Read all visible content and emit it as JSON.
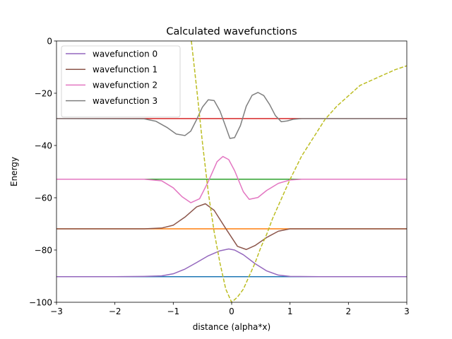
{
  "chart_data": {
    "type": "line",
    "title": "Calculated wavefunctions",
    "xlabel": "distance (alpha*x)",
    "ylabel": "Energy",
    "xlim": [
      -3,
      3
    ],
    "ylim": [
      -100,
      0
    ],
    "xticks": [
      -3,
      -2,
      -1,
      0,
      1,
      2,
      3
    ],
    "yticks": [
      -100,
      -80,
      -60,
      -40,
      -20,
      0
    ],
    "xtick_labels": [
      "−3",
      "−2",
      "−1",
      "0",
      "1",
      "2",
      "3"
    ],
    "ytick_labels": [
      "−100",
      "−80",
      "−60",
      "−40",
      "−20",
      "0"
    ],
    "grid": false,
    "legend_position": "upper-left",
    "potential": {
      "style": "dashed",
      "color": "#bcbd22",
      "x": [
        -0.69,
        -0.6,
        -0.5,
        -0.4,
        -0.3,
        -0.2,
        -0.1,
        0.0,
        0.1,
        0.2,
        0.3,
        0.4,
        0.5,
        0.6,
        0.7,
        0.8,
        0.9,
        1.0,
        1.2,
        1.4,
        1.6,
        1.8,
        2.0,
        2.2,
        2.4,
        2.6,
        2.8,
        3.0
      ],
      "y": [
        0,
        -18,
        -39,
        -58,
        -73,
        -85,
        -95,
        -100,
        -98,
        -95,
        -90,
        -85,
        -79,
        -74,
        -68,
        -63,
        -58,
        -53,
        -44,
        -37,
        -30,
        -25,
        -21,
        -17,
        -15,
        -13,
        -11,
        -9.5
      ]
    },
    "energy_levels": [
      {
        "energy": -90.2,
        "x_start": -1.0,
        "x_end": 1.0,
        "color": "#1f77b4"
      },
      {
        "energy": -71.9,
        "x_start": -1.2,
        "x_end": 1.2,
        "color": "#ff7f0e"
      },
      {
        "energy": -52.9,
        "x_start": -1.3,
        "x_end": 1.3,
        "color": "#2ca02c"
      },
      {
        "energy": -29.7,
        "x_start": -1.4,
        "x_end": 1.4,
        "color": "#d62728"
      }
    ],
    "series": [
      {
        "name": "wavefunction 0",
        "color": "#9467bd",
        "x": [
          -3.0,
          -2.0,
          -1.5,
          -1.2,
          -1.0,
          -0.8,
          -0.6,
          -0.4,
          -0.2,
          -0.05,
          0.05,
          0.2,
          0.4,
          0.6,
          0.8,
          1.0,
          1.5,
          2.0,
          3.0
        ],
        "y": [
          -90.2,
          -90.2,
          -90.1,
          -89.9,
          -89.1,
          -87.3,
          -84.8,
          -82.2,
          -80.3,
          -79.6,
          -80.0,
          -81.8,
          -85.2,
          -88.0,
          -89.6,
          -90.1,
          -90.2,
          -90.2,
          -90.2
        ]
      },
      {
        "name": "wavefunction 1",
        "color": "#8c564b",
        "x": [
          -3.0,
          -1.5,
          -1.2,
          -1.0,
          -0.8,
          -0.6,
          -0.45,
          -0.3,
          -0.1,
          0.1,
          0.25,
          0.4,
          0.6,
          0.8,
          1.0,
          1.5,
          3.0
        ],
        "y": [
          -71.9,
          -71.9,
          -71.6,
          -70.5,
          -67.4,
          -63.5,
          -62.3,
          -64.8,
          -71.8,
          -78.6,
          -79.8,
          -78.3,
          -75.2,
          -72.8,
          -71.9,
          -71.9,
          -71.9
        ]
      },
      {
        "name": "wavefunction 2",
        "color": "#e377c2",
        "x": [
          -3.0,
          -1.5,
          -1.2,
          -1.0,
          -0.85,
          -0.7,
          -0.55,
          -0.4,
          -0.25,
          -0.15,
          -0.05,
          0.05,
          0.2,
          0.3,
          0.45,
          0.6,
          0.8,
          1.0,
          1.2,
          1.5,
          3.0
        ],
        "y": [
          -52.9,
          -52.9,
          -53.5,
          -56.2,
          -59.6,
          -61.9,
          -60.4,
          -53.8,
          -46.2,
          -44.2,
          -45.4,
          -49.6,
          -57.7,
          -60.6,
          -59.9,
          -57.2,
          -54.5,
          -53.2,
          -52.9,
          -52.9,
          -52.9
        ]
      },
      {
        "name": "wavefunction 3",
        "color": "#7f7f7f",
        "x": [
          -3.0,
          -1.5,
          -1.3,
          -1.1,
          -0.95,
          -0.8,
          -0.7,
          -0.6,
          -0.5,
          -0.4,
          -0.3,
          -0.2,
          -0.1,
          -0.03,
          0.05,
          0.15,
          0.25,
          0.35,
          0.45,
          0.55,
          0.65,
          0.75,
          0.85,
          0.95,
          1.05,
          1.2,
          1.5,
          3.0
        ],
        "y": [
          -29.7,
          -29.8,
          -30.7,
          -33.2,
          -35.6,
          -36.2,
          -34.5,
          -30.1,
          -25.3,
          -22.5,
          -22.8,
          -26.8,
          -32.9,
          -37.3,
          -37.0,
          -32.4,
          -25.0,
          -20.8,
          -19.7,
          -20.9,
          -24.3,
          -28.6,
          -30.9,
          -30.6,
          -30.0,
          -29.7,
          -29.7,
          -29.7
        ]
      }
    ]
  }
}
